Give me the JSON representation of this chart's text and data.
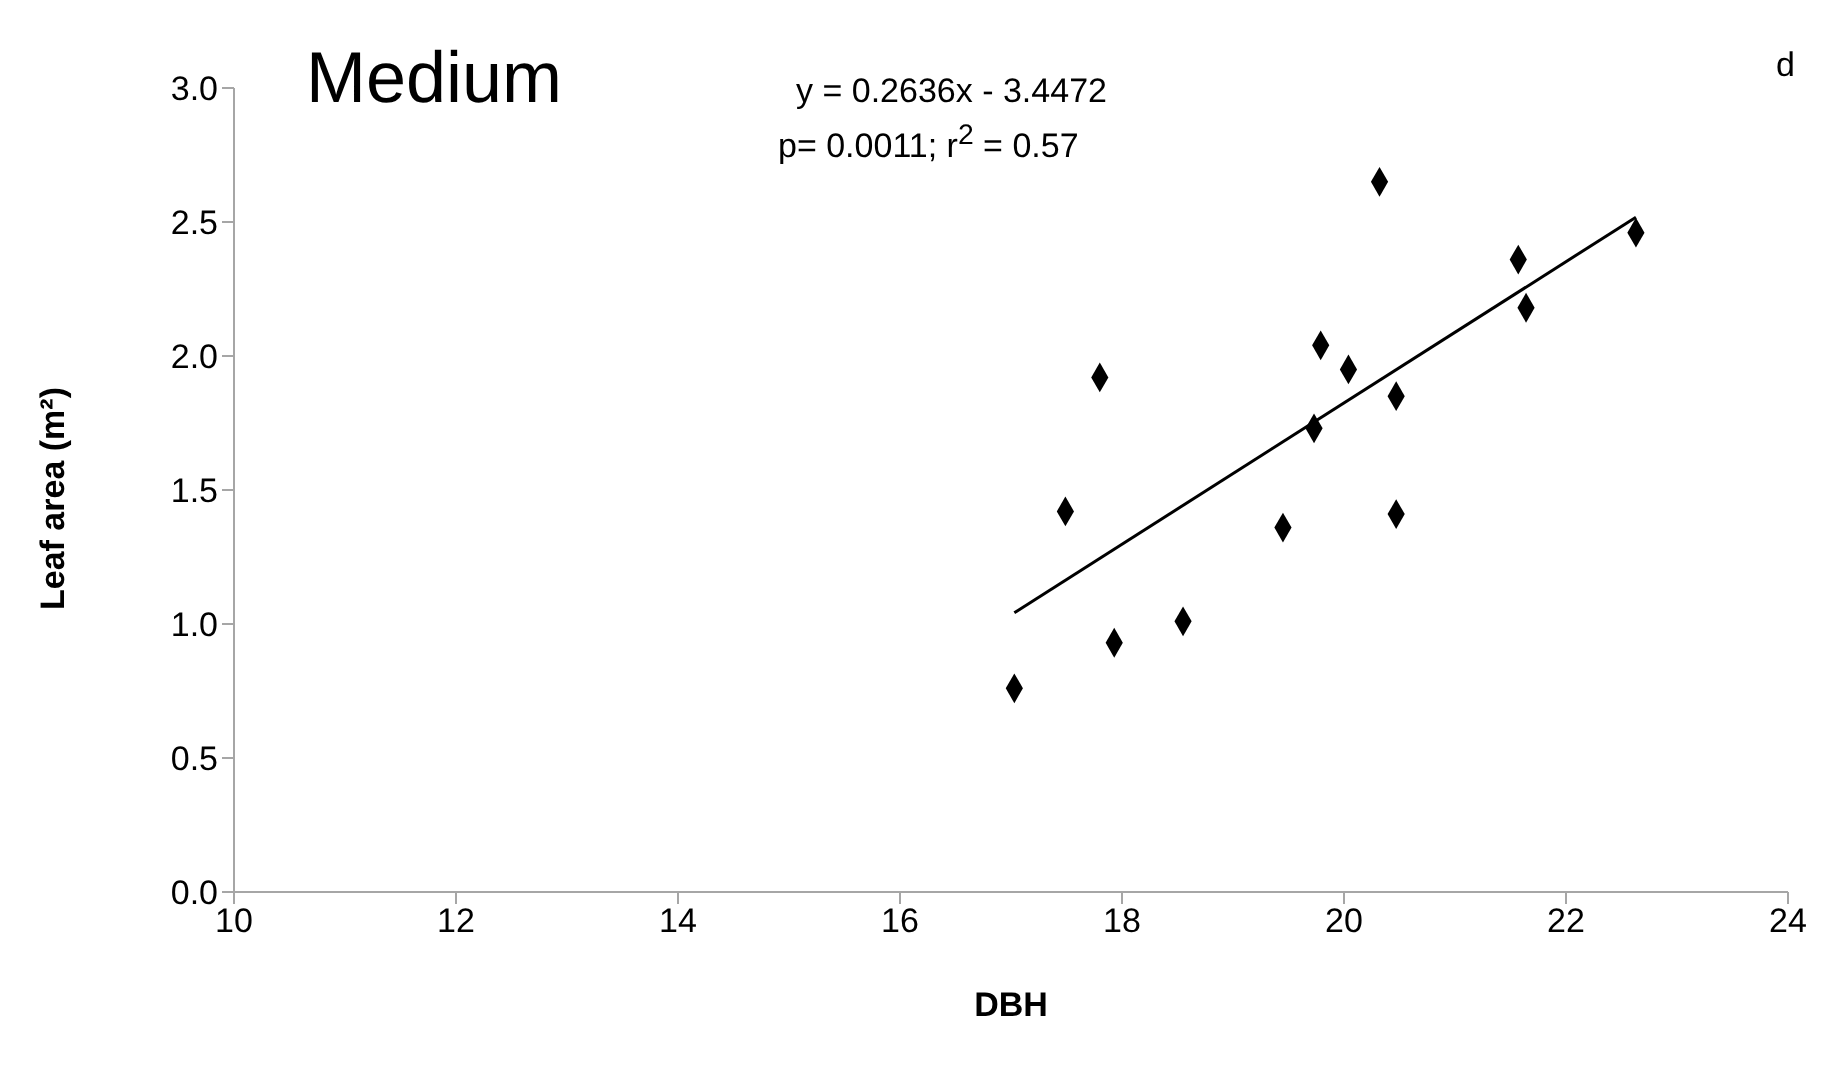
{
  "chart_data": {
    "type": "scatter",
    "xlabel": "DBH",
    "ylabel": "Leaf area (m²)",
    "annotations": [
      "Medium",
      "y = 0.2636x - 3.4472",
      "p= 0.0011; r$^{2}$ = 0.57",
      "d"
    ],
    "xlim": [
      10,
      24
    ],
    "xticks": [
      10,
      12,
      14,
      16,
      18,
      20,
      22,
      24
    ],
    "ylim": [
      0,
      3
    ],
    "yticks": [
      {
        "value": 0,
        "label": "0.0"
      },
      {
        "value": 0.5,
        "label": "0.5"
      },
      {
        "value": 1,
        "label": "1.0"
      },
      {
        "value": 1.5,
        "label": "1.5"
      },
      {
        "value": 2,
        "label": "2.0"
      },
      {
        "value": 2.5,
        "label": "2.5"
      },
      {
        "value": 3,
        "label": "3.0"
      }
    ],
    "grid": false,
    "series": [
      {
        "color": "#000000",
        "marker": "diamond",
        "x": [
          17.03,
          17.49,
          17.8,
          17.93,
          18.55,
          19.45,
          19.73,
          19.79,
          20.04,
          20.32,
          20.47,
          20.47,
          21.57,
          21.64,
          22.63
        ],
        "values": [
          0.76,
          1.42,
          1.92,
          0.93,
          1.01,
          1.36,
          1.73,
          2.04,
          1.95,
          2.65,
          1.85,
          1.41,
          2.36,
          2.18,
          2.46
        ]
      },
      {
        "type": "line",
        "color": "#000000",
        "marker": "none",
        "x": [
          17.03,
          22.63
        ],
        "values": [
          1.042,
          2.518
        ]
      }
    ]
  }
}
